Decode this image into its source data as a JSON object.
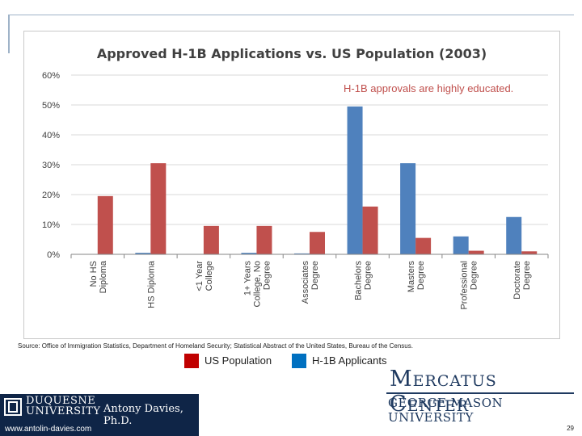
{
  "chart_data": {
    "type": "bar",
    "title": "Approved H-1B Applications vs. US Population  (2003)",
    "annotation": "H-1B approvals are highly educated.",
    "categories": [
      [
        "No HS",
        "Diploma"
      ],
      [
        "HS Diploma"
      ],
      [
        "<1 Year",
        "College"
      ],
      [
        "1+ Years",
        "College, No",
        "Degree"
      ],
      [
        "Associates",
        "Degree"
      ],
      [
        "Bachelors",
        "Degree"
      ],
      [
        "Masters",
        "Degree"
      ],
      [
        "Professional",
        "Degree"
      ],
      [
        "Doctorate",
        "Degree"
      ]
    ],
    "series": [
      {
        "name": "H-1B Applicants",
        "color": "#4f81bd",
        "values": [
          0.0,
          0.5,
          0.0,
          0.5,
          0.3,
          49.5,
          30.5,
          6.0,
          12.5
        ]
      },
      {
        "name": "US Population",
        "color": "#c0504d",
        "values": [
          19.5,
          30.5,
          9.5,
          9.5,
          7.5,
          16.0,
          5.5,
          1.2,
          1.0
        ]
      }
    ],
    "ylim": [
      0,
      60
    ],
    "yticks": [
      "0%",
      "10%",
      "20%",
      "30%",
      "40%",
      "50%",
      "60%"
    ],
    "xlabel": "",
    "ylabel": "",
    "grid": true,
    "legend_position": "bottom"
  },
  "source_note": "Source:  Office of Immigration Statistics, Department of Homeland Security; Statistical Abstract of the United States, Bureau of the Census.",
  "legend": {
    "us_population": {
      "label": "US Population",
      "color": "#c00000"
    },
    "h1b": {
      "label": "H-1B Applicants",
      "color": "#0070c0"
    }
  },
  "branding": {
    "mercatus_line1": "Mercatus Center",
    "mercatus_line2": "GEORGE MASON UNIVERSITY",
    "university_line1": "DUQUESNE",
    "university_line2": "UNIVERSITY",
    "author": "Antony Davies, Ph.D.",
    "website": "www.antolin-davies.com",
    "page_number": "29"
  }
}
